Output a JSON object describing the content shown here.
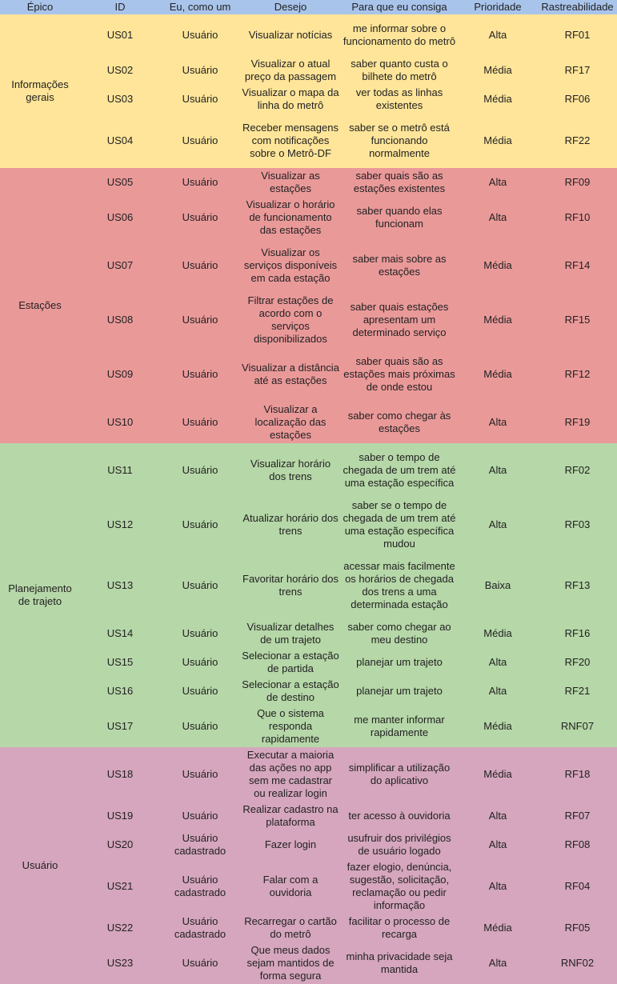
{
  "headers": {
    "epico": "Épico",
    "id": "ID",
    "como": "Eu, como um",
    "desejo": "Desejo",
    "para": "Para que eu consiga",
    "prioridade": "Prioridade",
    "rastreabilidade": "Rastreabilidade"
  },
  "group_colors": {
    "g-yellow": "#ffe599",
    "g-red": "#ea9999",
    "g-green": "#b6d7a8",
    "g-pink": "#d5a6bd",
    "header": "#a9c4eb"
  },
  "groups": [
    {
      "epico": "Informações gerais",
      "cls": "g-yellow",
      "rows": [
        {
          "id": "US01",
          "como": "Usuário",
          "desejo": "Visualizar notícias",
          "para": "me informar sobre o funcionamento do metrô",
          "prioridade": "Alta",
          "rastreabilidade": "RF01",
          "h": 52
        },
        {
          "id": "US02",
          "como": "Usuário",
          "desejo": "Visualizar o atual preço da passagem",
          "para": "saber quanto custa o bilhete do metrô",
          "prioridade": "Média",
          "rastreabilidade": "RF17",
          "h": 36
        },
        {
          "id": "US03",
          "como": "Usuário",
          "desejo": "Visualizar o mapa da linha do metrô",
          "para": "ver todas as linhas existentes",
          "prioridade": "Média",
          "rastreabilidade": "RF06",
          "h": 36
        },
        {
          "id": "US04",
          "como": "Usuário",
          "desejo": "Receber mensagens com notificações sobre o Metrô-DF",
          "para": "saber se o metrô está funcionando normalmente",
          "prioridade": "Média",
          "rastreabilidade": "RF22",
          "h": 68
        }
      ]
    },
    {
      "epico": "Estações",
      "cls": "g-red",
      "rows": [
        {
          "id": "US05",
          "como": "Usuário",
          "desejo": "Visualizar as estações",
          "para": "saber quais são as estações existentes",
          "prioridade": "Alta",
          "rastreabilidade": "RF09",
          "h": 36
        },
        {
          "id": "US06",
          "como": "Usuário",
          "desejo": "Visualizar o horário de funcionamento das estações",
          "para": "saber quando elas funcionam",
          "prioridade": "Alta",
          "rastreabilidade": "RF10",
          "h": 52
        },
        {
          "id": "US07",
          "como": "Usuário",
          "desejo": "Visualizar os serviços disponíveis em cada estação",
          "para": "saber mais sobre as estações",
          "prioridade": "Média",
          "rastreabilidade": "RF14",
          "h": 68
        },
        {
          "id": "US08",
          "como": "Usuário",
          "desejo": "Filtrar estações de acordo com o serviços disponibilizados",
          "para": "saber quais estações apresentam um determinado serviço",
          "prioridade": "Média",
          "rastreabilidade": "RF15",
          "h": 68
        },
        {
          "id": "US09",
          "como": "Usuário",
          "desejo": "Visualizar a distância até as estações",
          "para": "saber quais são as estações mais próximas de onde estou",
          "prioridade": "Média",
          "rastreabilidade": "RF12",
          "h": 68
        },
        {
          "id": "US10",
          "como": "Usuário",
          "desejo": "Visualizar a localização das estações",
          "para": "saber como chegar às estações",
          "prioridade": "Alta",
          "rastreabilidade": "RF19",
          "h": 52
        }
      ]
    },
    {
      "epico": "Planejamento de trajeto",
      "cls": "g-green",
      "rows": [
        {
          "id": "US11",
          "como": "Usuário",
          "desejo": "Visualizar horário dos trens",
          "para": "saber o tempo de chegada de um trem até uma estação específica",
          "prioridade": "Alta",
          "rastreabilidade": "RF02",
          "h": 68
        },
        {
          "id": "US12",
          "como": "Usuário",
          "desejo": "Atualizar horário dos trens",
          "para": "saber se o tempo de chegada de um trem até uma estação específica mudou",
          "prioridade": "Alta",
          "rastreabilidade": "RF03",
          "h": 68
        },
        {
          "id": "US13",
          "como": "Usuário",
          "desejo": "Favoritar horário dos trens",
          "para": "acessar mais facilmente os horários de chegada dos trens a uma determinada estação",
          "prioridade": "Baixa",
          "rastreabilidade": "RF13",
          "h": 84
        },
        {
          "id": "US14",
          "como": "Usuário",
          "desejo": "Visualizar detalhes de um trajeto",
          "para": "saber como chegar ao meu destino",
          "prioridade": "Média",
          "rastreabilidade": "RF16",
          "h": 36
        },
        {
          "id": "US15",
          "como": "Usuário",
          "desejo": "Selecionar a estação de partida",
          "para": "planejar um trajeto",
          "prioridade": "Alta",
          "rastreabilidade": "RF20",
          "h": 36
        },
        {
          "id": "US16",
          "como": "Usuário",
          "desejo": "Selecionar a estação de destino",
          "para": "planejar um trajeto",
          "prioridade": "Alta",
          "rastreabilidade": "RF21",
          "h": 36
        },
        {
          "id": "US17",
          "como": "Usuário",
          "desejo": "Que o sistema responda rapidamente",
          "para": "me manter informar rapidamente",
          "prioridade": "Média",
          "rastreabilidade": "RNF07",
          "h": 52
        }
      ]
    },
    {
      "epico": "Usuário",
      "cls": "g-pink",
      "rows": [
        {
          "id": "US18",
          "como": "Usuário",
          "desejo": "Executar a maioria das ações no app sem me cadastrar ou realizar login",
          "para": "simplificar a utilização do aplicativo",
          "prioridade": "Média",
          "rastreabilidade": "RF18",
          "h": 68
        },
        {
          "id": "US19",
          "como": "Usuário",
          "desejo": "Realizar cadastro na plataforma",
          "para": "ter acesso à ouvidoria",
          "prioridade": "Alta",
          "rastreabilidade": "RF07",
          "h": 36
        },
        {
          "id": "US20",
          "como": "Usuário cadastrado",
          "desejo": "Fazer login",
          "para": "usufruir dos privilégios de usuário logado",
          "prioridade": "Alta",
          "rastreabilidade": "RF08",
          "h": 36
        },
        {
          "id": "US21",
          "como": "Usuário cadastrado",
          "desejo": "Falar com a ouvidoria",
          "para": "fazer elogio, denúncia, sugestão, solicitação, reclamação ou pedir informação",
          "prioridade": "Alta",
          "rastreabilidade": "RF04",
          "h": 68
        },
        {
          "id": "US22",
          "como": "Usuário cadastrado",
          "desejo": "Recarregar o cartão do metrô",
          "para": "facilitar o processo de recarga",
          "prioridade": "Média",
          "rastreabilidade": "RF05",
          "h": 36
        },
        {
          "id": "US23",
          "como": "Usuário",
          "desejo": "Que meus dados sejam mantidos de forma segura",
          "para": "minha privacidade seja mantida",
          "prioridade": "Alta",
          "rastreabilidade": "RNF02",
          "h": 52
        }
      ]
    }
  ]
}
